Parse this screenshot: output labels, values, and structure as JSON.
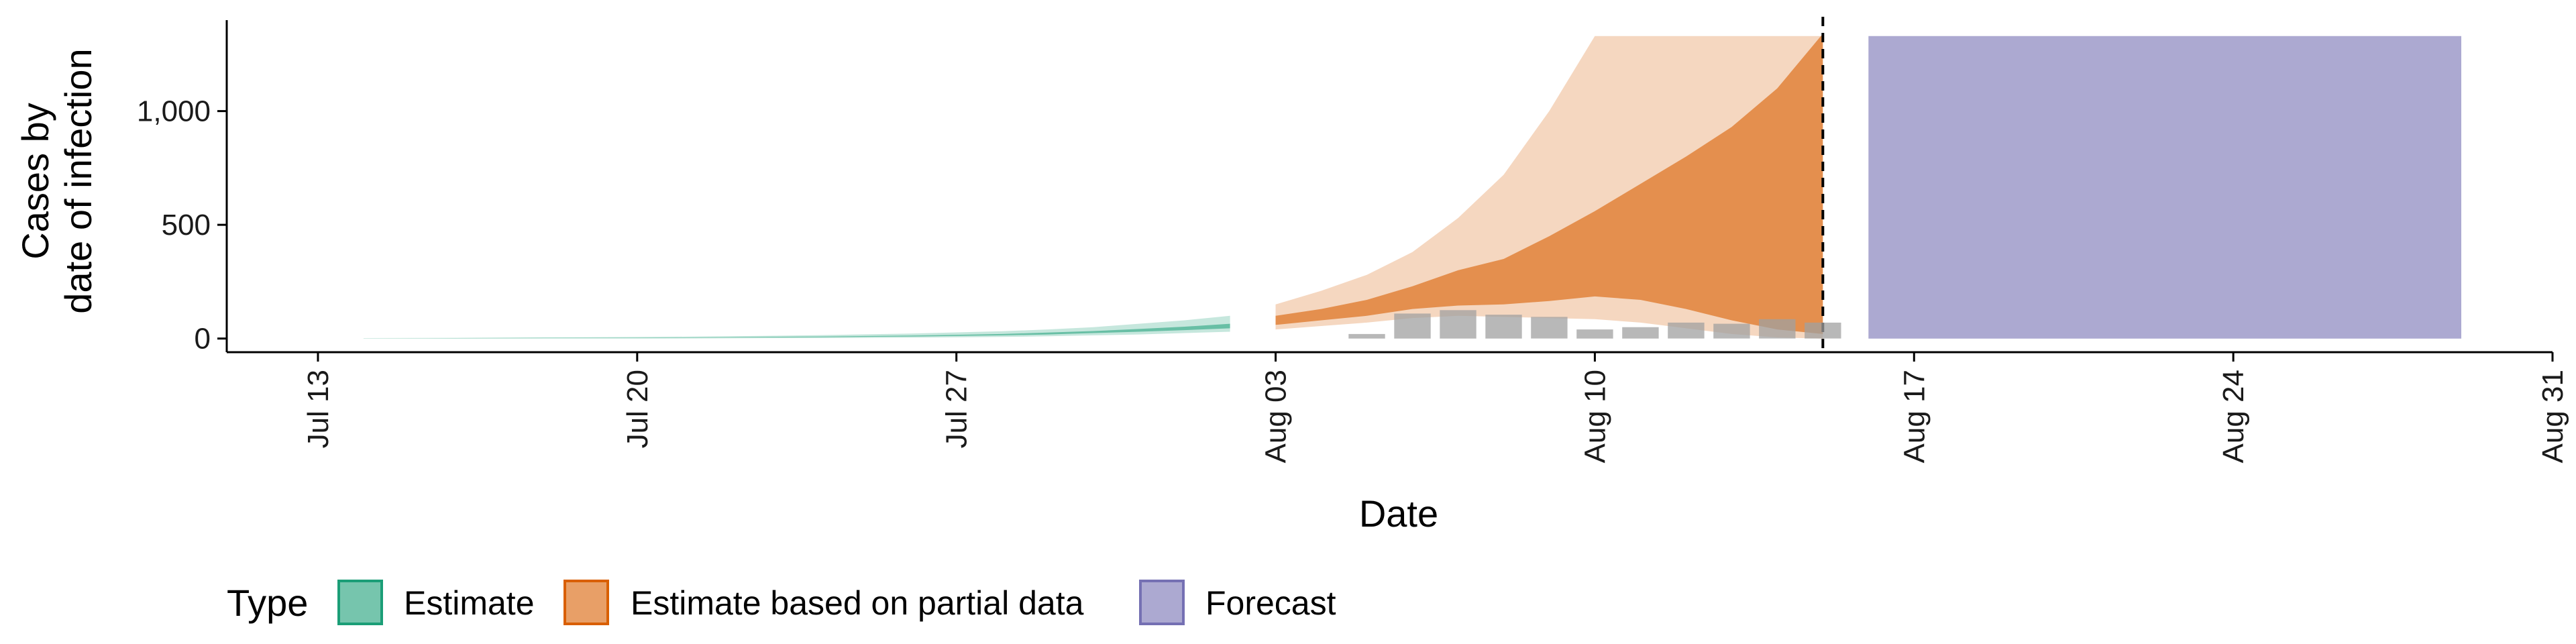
{
  "chart_data": {
    "type": "area",
    "xlabel": "Date",
    "ylabel_lines": [
      "Cases by",
      "date of infection"
    ],
    "x_ticks": [
      "Jul 13",
      "Jul 20",
      "Jul 27",
      "Aug 03",
      "Aug 10",
      "Aug 17",
      "Aug 24",
      "Aug 31"
    ],
    "x_tick_dates": [
      "2020-07-13",
      "2020-07-20",
      "2020-07-27",
      "2020-08-03",
      "2020-08-10",
      "2020-08-17",
      "2020-08-24",
      "2020-08-31"
    ],
    "y_ticks": [
      0,
      500,
      1000
    ],
    "y_tick_labels": [
      "0",
      "500",
      "1,000"
    ],
    "xlim": [
      "2020-07-11",
      "2020-08-31"
    ],
    "ylim": [
      -60,
      1400
    ],
    "grid": false,
    "legend": {
      "title": "Type",
      "position": "bottom",
      "items": [
        {
          "label": "Estimate",
          "color": "#1b9e77"
        },
        {
          "label": "Estimate based on partial data",
          "color": "#d95f02"
        },
        {
          "label": "Forecast",
          "color": "#7570b3"
        }
      ]
    },
    "reported_cases": {
      "color": "#a0a0a0",
      "dates": [
        "2020-08-05",
        "2020-08-06",
        "2020-08-07",
        "2020-08-08",
        "2020-08-09",
        "2020-08-10",
        "2020-08-11",
        "2020-08-12",
        "2020-08-13",
        "2020-08-14",
        "2020-08-15"
      ],
      "values": [
        20,
        110,
        125,
        105,
        95,
        40,
        50,
        70,
        65,
        85,
        70
      ]
    },
    "estimate": {
      "dates": [
        "2020-07-14",
        "2020-07-16",
        "2020-07-18",
        "2020-07-20",
        "2020-07-22",
        "2020-07-24",
        "2020-07-26",
        "2020-07-28",
        "2020-07-29",
        "2020-07-30",
        "2020-07-31",
        "2020-08-01",
        "2020-08-02"
      ],
      "outer_lower": [
        0,
        0,
        0,
        0,
        1,
        2,
        4,
        7,
        10,
        14,
        18,
        24,
        30
      ],
      "outer_upper": [
        2,
        3,
        5,
        7,
        10,
        15,
        22,
        32,
        40,
        50,
        65,
        80,
        100
      ],
      "inner_lower": [
        1,
        1,
        2,
        3,
        4,
        6,
        9,
        14,
        18,
        24,
        30,
        37,
        45
      ],
      "inner_upper": [
        1,
        2,
        3,
        4,
        6,
        9,
        13,
        20,
        26,
        33,
        42,
        52,
        65
      ]
    },
    "estimate_partial": {
      "dates": [
        "2020-08-03",
        "2020-08-04",
        "2020-08-05",
        "2020-08-06",
        "2020-08-07",
        "2020-08-08",
        "2020-08-09",
        "2020-08-10",
        "2020-08-11",
        "2020-08-12",
        "2020-08-13",
        "2020-08-14",
        "2020-08-15"
      ],
      "outer_lower": [
        40,
        55,
        70,
        90,
        100,
        95,
        90,
        85,
        70,
        45,
        20,
        5,
        0
      ],
      "outer_upper": [
        150,
        210,
        280,
        380,
        530,
        720,
        1000,
        1330,
        1330,
        1330,
        1330,
        1330,
        1330
      ],
      "inner_lower": [
        60,
        80,
        100,
        130,
        145,
        150,
        165,
        185,
        170,
        130,
        80,
        40,
        20
      ],
      "inner_upper": [
        100,
        130,
        170,
        230,
        300,
        350,
        450,
        560,
        680,
        800,
        930,
        1100,
        1340
      ]
    },
    "forecast": {
      "dates": [
        "2020-08-16",
        "2020-08-29"
      ],
      "lower": [
        0,
        0
      ],
      "upper": [
        1330,
        1330
      ]
    },
    "date_of_estimate": "2020-08-15"
  }
}
